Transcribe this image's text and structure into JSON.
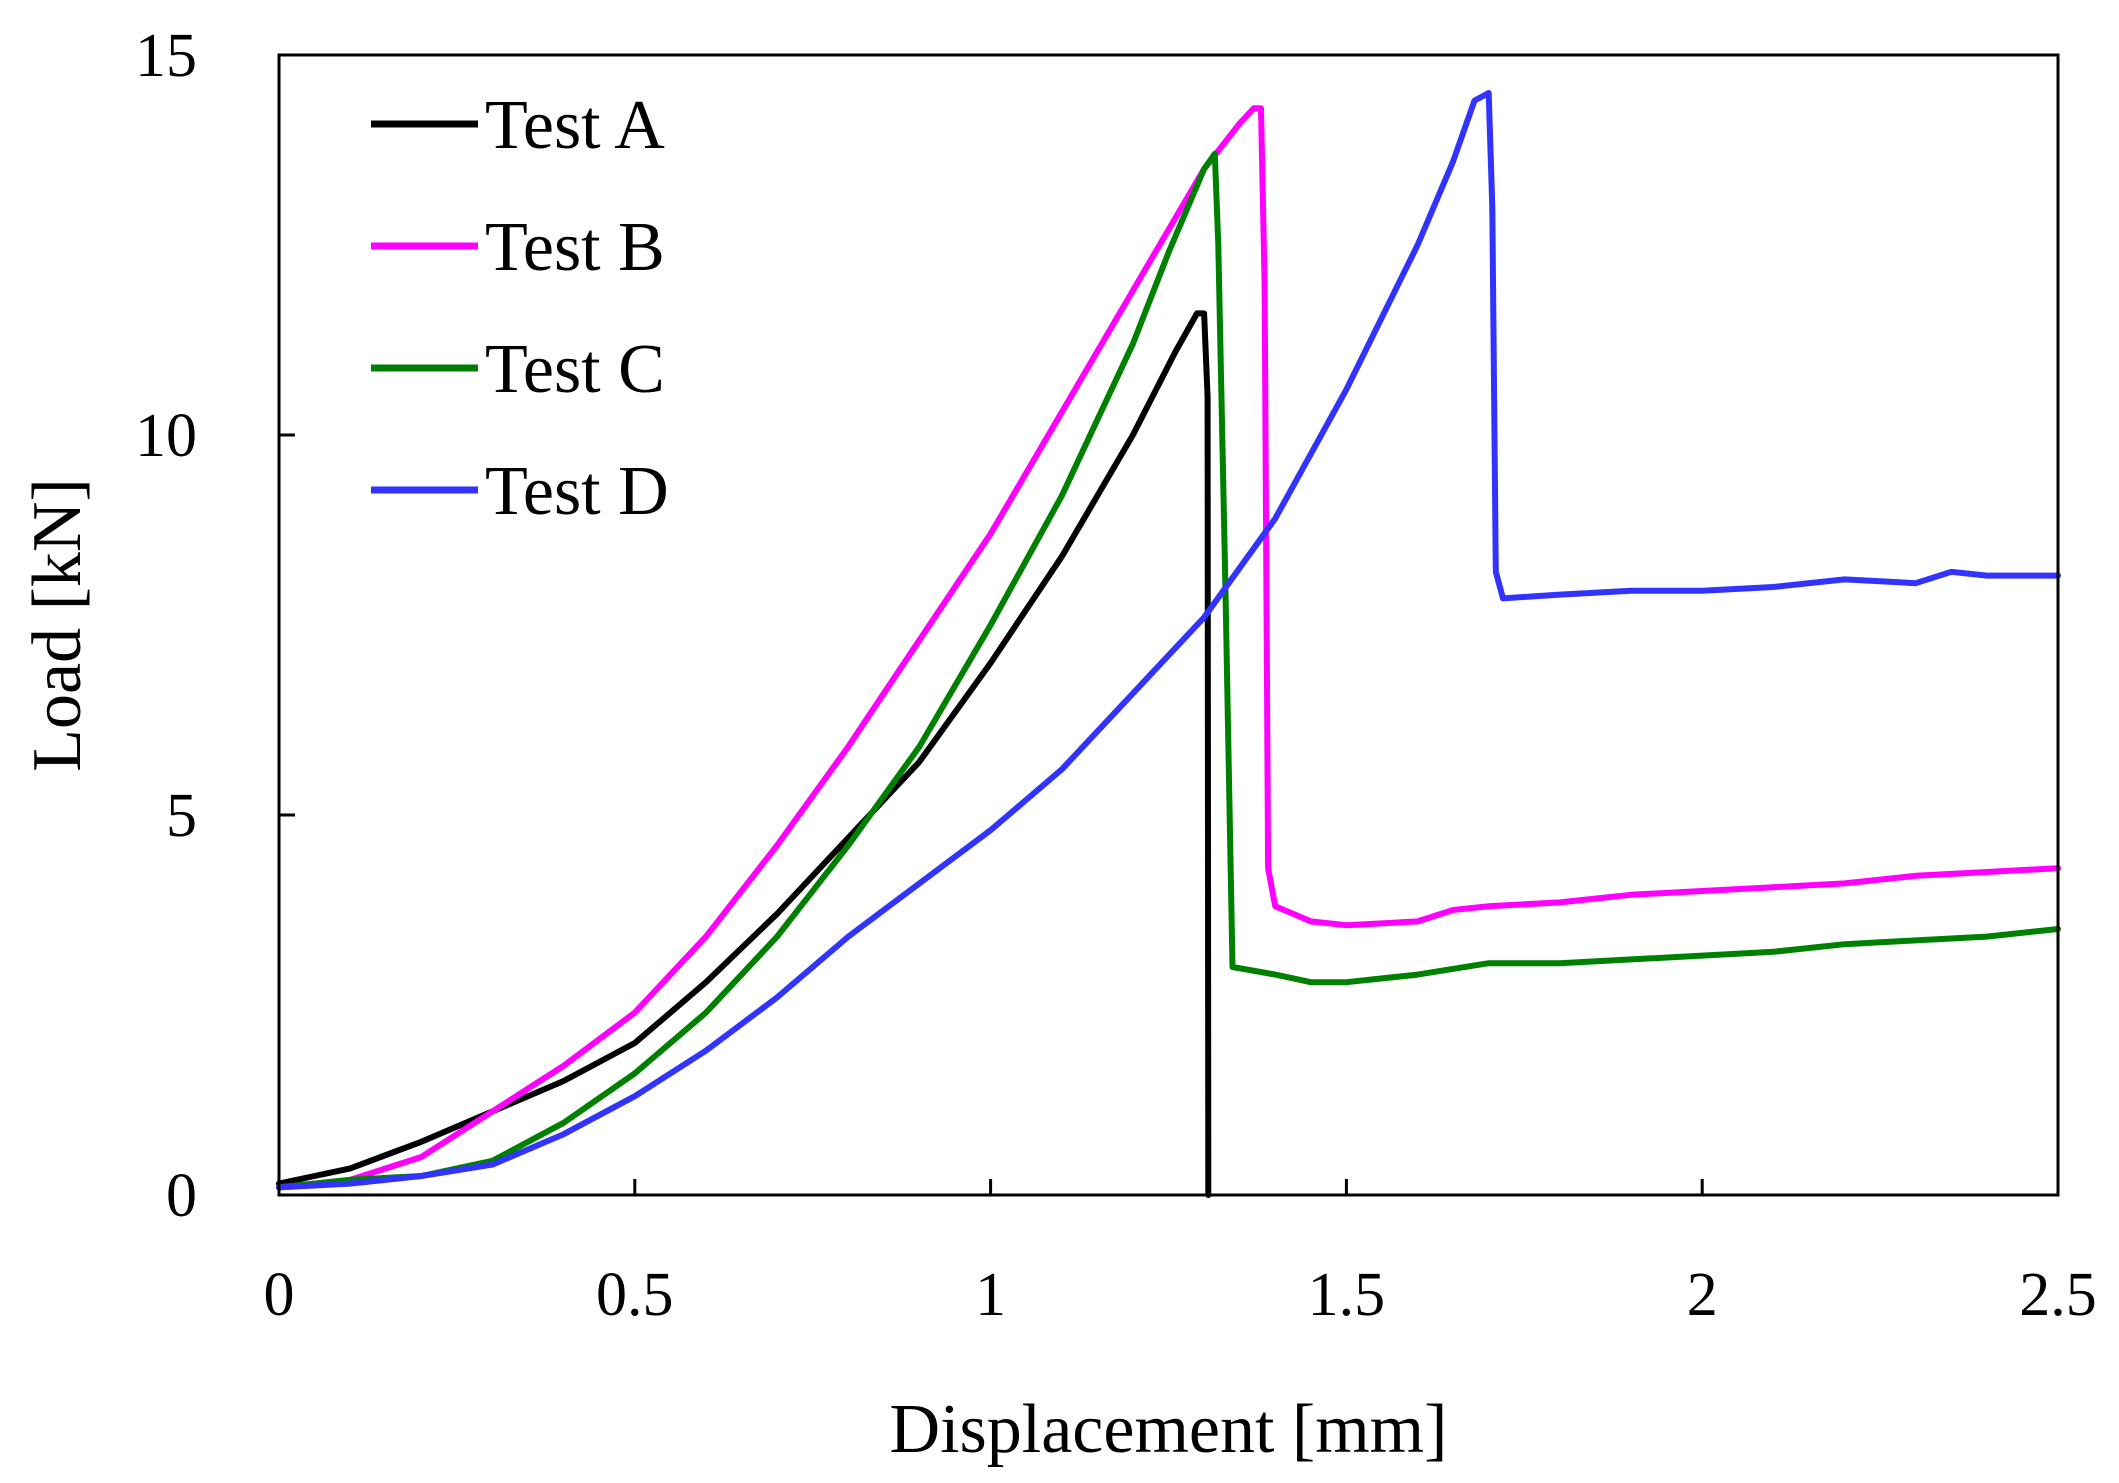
{
  "chart_data": {
    "type": "line",
    "title": "",
    "xlabel": "Displacement [mm]",
    "ylabel": "Load [kN]",
    "xlim": [
      0,
      2.5
    ],
    "ylim": [
      0,
      15
    ],
    "xticks": [
      {
        "value": 0,
        "label": "0"
      },
      {
        "value": 0.5,
        "label": "0.5"
      },
      {
        "value": 1,
        "label": "1"
      },
      {
        "value": 1.5,
        "label": "1.5"
      },
      {
        "value": 2,
        "label": "2"
      },
      {
        "value": 2.5,
        "label": "2.5"
      }
    ],
    "yticks": [
      {
        "value": 0,
        "label": "0"
      },
      {
        "value": 5,
        "label": "5"
      },
      {
        "value": 10,
        "label": "10"
      },
      {
        "value": 15,
        "label": "15"
      }
    ],
    "grid": false,
    "legend_position": "top-left",
    "series": [
      {
        "name": "Test A",
        "color": "#000000",
        "x": [
          0,
          0.05,
          0.1,
          0.2,
          0.3,
          0.4,
          0.5,
          0.6,
          0.7,
          0.8,
          0.9,
          1.0,
          1.1,
          1.2,
          1.26,
          1.29,
          1.3,
          1.305,
          1.306
        ],
        "y": [
          0.15,
          0.25,
          0.35,
          0.7,
          1.1,
          1.5,
          2.0,
          2.8,
          3.7,
          4.7,
          5.7,
          7.0,
          8.4,
          10.0,
          11.1,
          11.6,
          11.6,
          10.5,
          0.0
        ]
      },
      {
        "name": "Test B",
        "color": "#FF00FF",
        "x": [
          0,
          0.1,
          0.2,
          0.3,
          0.4,
          0.5,
          0.6,
          0.7,
          0.8,
          0.9,
          1.0,
          1.1,
          1.2,
          1.3,
          1.35,
          1.37,
          1.38,
          1.385,
          1.39,
          1.4,
          1.45,
          1.5,
          1.6,
          1.65,
          1.7,
          1.8,
          1.9,
          2.0,
          2.1,
          2.2,
          2.3,
          2.4,
          2.5
        ],
        "y": [
          0.1,
          0.2,
          0.5,
          1.1,
          1.7,
          2.4,
          3.4,
          4.6,
          5.9,
          7.3,
          8.7,
          10.3,
          11.9,
          13.5,
          14.1,
          14.3,
          14.3,
          12.0,
          4.3,
          3.8,
          3.6,
          3.55,
          3.6,
          3.75,
          3.8,
          3.85,
          3.95,
          4.0,
          4.05,
          4.1,
          4.2,
          4.25,
          4.3
        ]
      },
      {
        "name": "Test C",
        "color": "#008000",
        "x": [
          0,
          0.1,
          0.2,
          0.3,
          0.4,
          0.5,
          0.6,
          0.7,
          0.8,
          0.9,
          1.0,
          1.1,
          1.2,
          1.25,
          1.3,
          1.315,
          1.32,
          1.33,
          1.34,
          1.4,
          1.45,
          1.5,
          1.6,
          1.7,
          1.8,
          1.9,
          2.0,
          2.1,
          2.2,
          2.3,
          2.4,
          2.5
        ],
        "y": [
          0.1,
          0.2,
          0.25,
          0.45,
          0.95,
          1.6,
          2.4,
          3.4,
          4.6,
          5.9,
          7.5,
          9.2,
          11.2,
          12.4,
          13.5,
          13.7,
          12.5,
          8.0,
          3.0,
          2.9,
          2.8,
          2.8,
          2.9,
          3.05,
          3.05,
          3.1,
          3.15,
          3.2,
          3.3,
          3.35,
          3.4,
          3.5
        ]
      },
      {
        "name": "Test D",
        "color": "#3333FF",
        "x": [
          0,
          0.1,
          0.2,
          0.3,
          0.4,
          0.5,
          0.6,
          0.7,
          0.8,
          0.9,
          1.0,
          1.1,
          1.2,
          1.3,
          1.4,
          1.5,
          1.6,
          1.65,
          1.68,
          1.7,
          1.705,
          1.71,
          1.72,
          1.8,
          1.9,
          2.0,
          2.1,
          2.2,
          2.3,
          2.35,
          2.4,
          2.5
        ],
        "y": [
          0.1,
          0.15,
          0.25,
          0.4,
          0.8,
          1.3,
          1.9,
          2.6,
          3.4,
          4.1,
          4.8,
          5.6,
          6.6,
          7.6,
          8.9,
          10.6,
          12.5,
          13.6,
          14.4,
          14.5,
          13.0,
          8.2,
          7.85,
          7.9,
          7.95,
          7.95,
          8.0,
          8.1,
          8.05,
          8.2,
          8.15,
          8.15
        ]
      }
    ]
  }
}
